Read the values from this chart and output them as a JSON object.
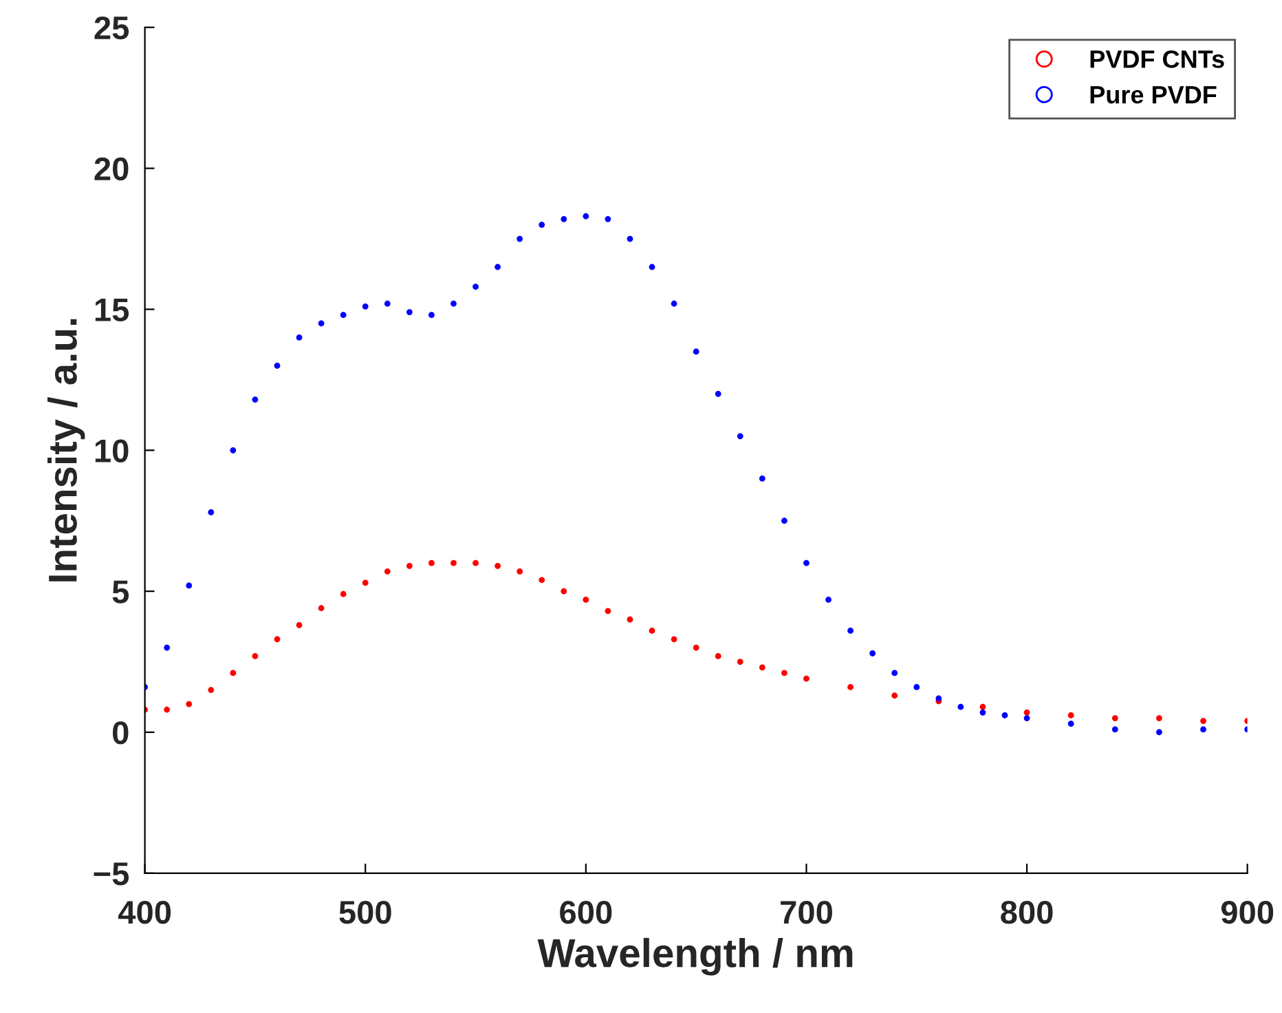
{
  "chart_data": {
    "type": "scatter",
    "xlabel": "Wavelength / nm",
    "ylabel": "Intensity / a.u.",
    "xlim": [
      400,
      900
    ],
    "xticks": [
      400,
      500,
      600,
      700,
      800,
      900
    ],
    "ylim": [
      -5,
      25
    ],
    "yticks": [
      {
        "value": -5,
        "label": "−5"
      },
      0,
      5,
      10,
      15,
      20,
      25
    ],
    "grid": false,
    "legend": "top right",
    "marker": "circle",
    "series": [
      {
        "name": "PVDF CNTs",
        "color": "#ff0000",
        "x": [
          400,
          410,
          420,
          430,
          440,
          450,
          460,
          470,
          480,
          490,
          500,
          510,
          520,
          530,
          540,
          550,
          560,
          570,
          580,
          590,
          600,
          610,
          620,
          630,
          640,
          650,
          660,
          670,
          680,
          690,
          700,
          720,
          740,
          760,
          780,
          800,
          820,
          840,
          860,
          880,
          900
        ],
        "values": [
          0.8,
          0.8,
          1.0,
          1.5,
          2.1,
          2.7,
          3.3,
          3.8,
          4.4,
          4.9,
          5.3,
          5.7,
          5.9,
          6.0,
          6.0,
          6.0,
          5.9,
          5.7,
          5.4,
          5.0,
          4.7,
          4.3,
          4.0,
          3.6,
          3.3,
          3.0,
          2.7,
          2.5,
          2.3,
          2.1,
          1.9,
          1.6,
          1.3,
          1.1,
          0.9,
          0.7,
          0.6,
          0.5,
          0.5,
          0.4,
          0.4
        ]
      },
      {
        "name": "Pure PVDF",
        "color": "#0000ff",
        "x": [
          400,
          410,
          420,
          430,
          440,
          450,
          460,
          470,
          480,
          490,
          500,
          510,
          520,
          530,
          540,
          550,
          560,
          570,
          580,
          590,
          600,
          610,
          620,
          630,
          640,
          650,
          660,
          670,
          680,
          690,
          700,
          710,
          720,
          730,
          740,
          750,
          760,
          770,
          780,
          790,
          800,
          820,
          840,
          860,
          880,
          900
        ],
        "values": [
          1.6,
          3.0,
          5.2,
          7.8,
          10.0,
          11.8,
          13.0,
          14.0,
          14.5,
          14.8,
          15.1,
          15.2,
          14.9,
          14.8,
          15.2,
          15.8,
          16.5,
          17.5,
          18.0,
          18.2,
          18.3,
          18.2,
          17.5,
          16.5,
          15.2,
          13.5,
          12.0,
          10.5,
          9.0,
          7.5,
          6.0,
          4.7,
          3.6,
          2.8,
          2.1,
          1.6,
          1.2,
          0.9,
          0.7,
          0.6,
          0.5,
          0.3,
          0.1,
          0.0,
          0.1,
          0.1
        ]
      }
    ]
  }
}
